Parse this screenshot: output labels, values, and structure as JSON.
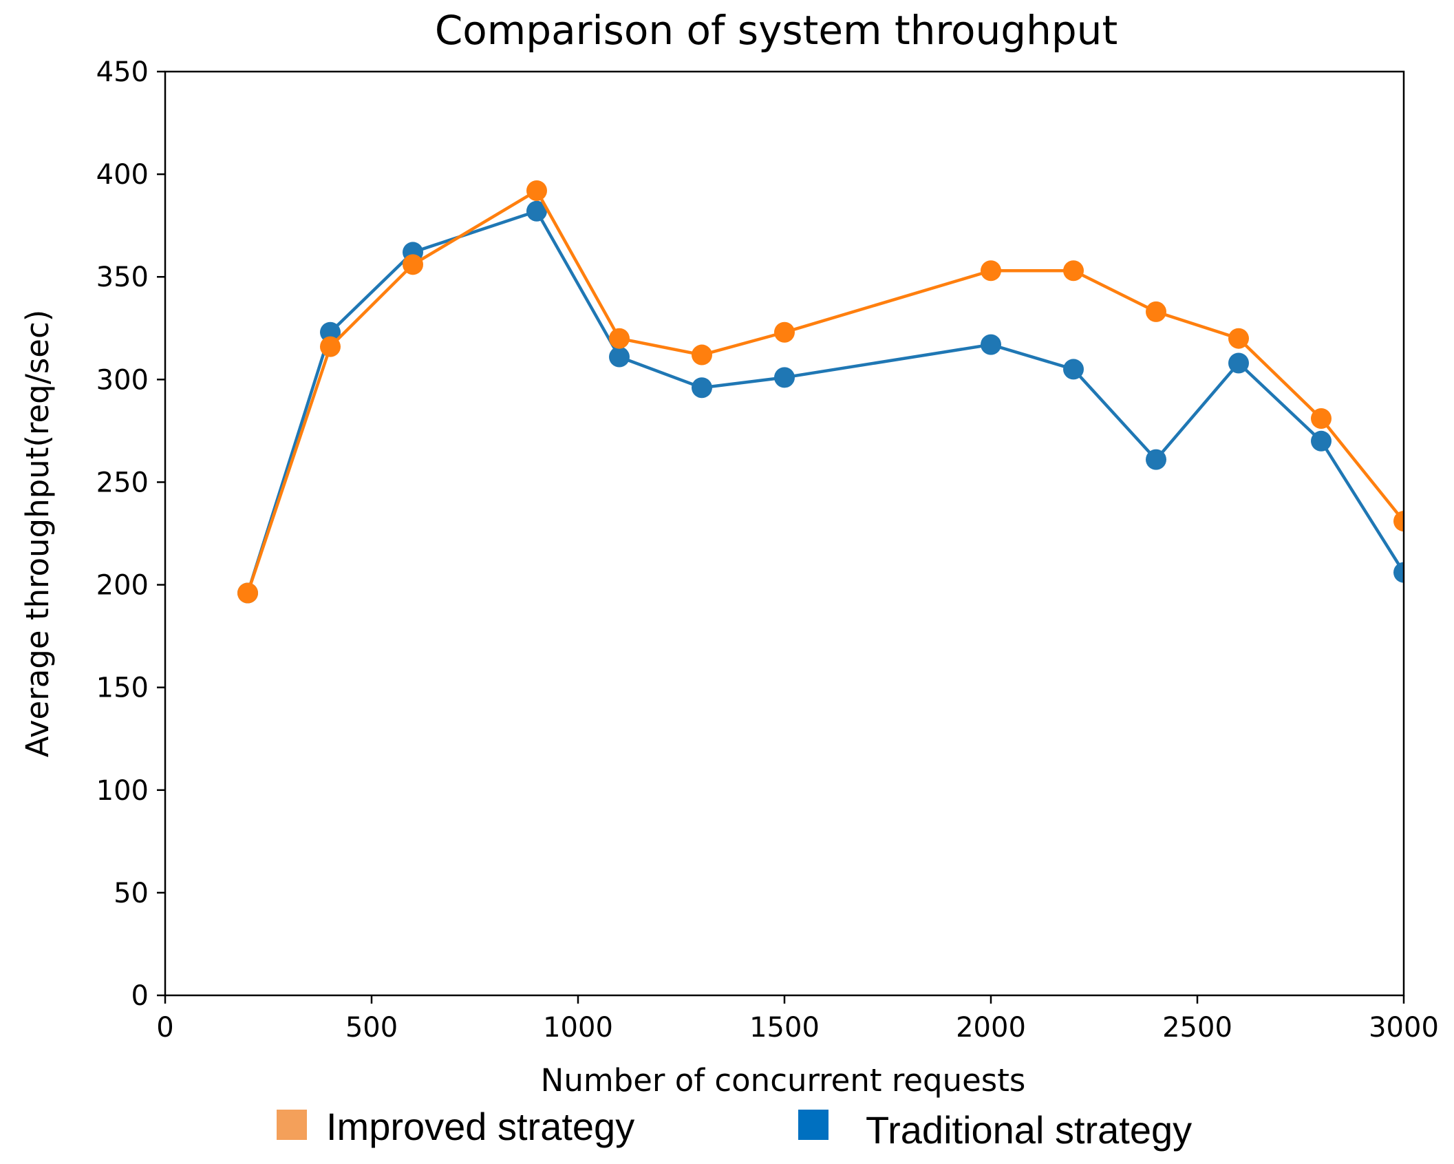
{
  "chart_data": {
    "type": "line",
    "title": "Comparison of system throughput",
    "xlabel": "Number of concurrent requests",
    "ylabel": "Average throughput(req/sec)",
    "xlim": [
      0,
      3000
    ],
    "ylim": [
      0,
      450
    ],
    "xticks": [
      0,
      500,
      1000,
      1500,
      2000,
      2500,
      3000
    ],
    "yticks": [
      0,
      50,
      100,
      150,
      200,
      250,
      300,
      350,
      400,
      450
    ],
    "x": [
      200,
      400,
      600,
      900,
      1100,
      1300,
      1500,
      2000,
      2200,
      2400,
      2600,
      2800,
      3000
    ],
    "series": [
      {
        "name": "Traditional strategy",
        "color": "#1f77b4",
        "values": [
          196,
          323,
          362,
          382,
          311,
          296,
          301,
          317,
          305,
          261,
          308,
          270,
          206
        ]
      },
      {
        "name": "Improved strategy",
        "color": "#ff7f0e",
        "values": [
          196,
          316,
          356,
          392,
          320,
          312,
          323,
          353,
          353,
          333,
          320,
          281,
          231
        ]
      }
    ],
    "legend": {
      "placement": "bottom",
      "items": [
        {
          "label": "Improved strategy",
          "color": "#f4a05a"
        },
        {
          "label": "Traditional strategy",
          "color": "#0070c0"
        }
      ]
    },
    "grid": false
  }
}
